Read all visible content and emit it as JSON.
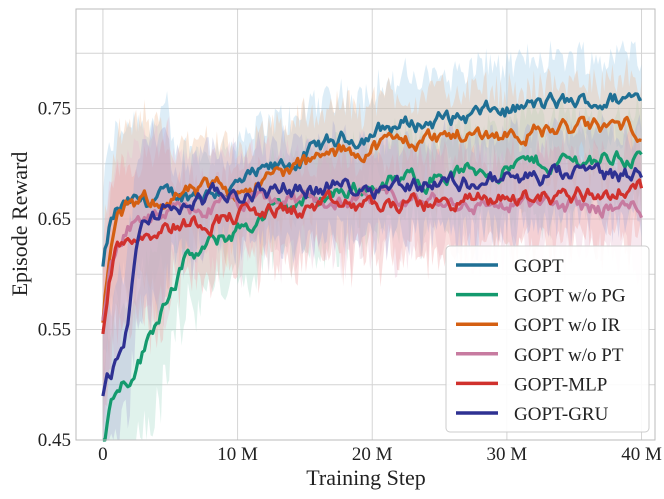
{
  "chart_data": {
    "type": "line",
    "title": "",
    "xlabel": "Training Step",
    "ylabel": "Episode Reward",
    "xlim": [
      -2,
      41
    ],
    "ylim": [
      0.45,
      0.84
    ],
    "x_ticks": [
      0,
      10,
      20,
      30,
      40
    ],
    "x_tick_labels": [
      "0",
      "10 M",
      "20 M",
      "30 M",
      "40 M"
    ],
    "y_ticks": [
      0.45,
      0.55,
      0.65,
      0.75
    ],
    "y_tick_labels": [
      "0.45",
      "0.55",
      "0.65",
      "0.75"
    ],
    "grid": true,
    "legend_position": "bottom-right",
    "x_unit": "million steps",
    "series": [
      {
        "name": "GOPT",
        "color": "#1f6f94",
        "band_color": "#9ecae8",
        "points": [
          [
            0,
            0.605
          ],
          [
            0.5,
            0.64
          ],
          [
            1,
            0.655
          ],
          [
            2,
            0.662
          ],
          [
            4,
            0.668
          ],
          [
            6,
            0.672
          ],
          [
            8,
            0.675
          ],
          [
            10,
            0.68
          ],
          [
            12,
            0.69
          ],
          [
            14,
            0.7
          ],
          [
            16,
            0.713
          ],
          [
            18,
            0.722
          ],
          [
            20,
            0.728
          ],
          [
            22,
            0.735
          ],
          [
            24,
            0.738
          ],
          [
            26,
            0.741
          ],
          [
            28,
            0.745
          ],
          [
            30,
            0.748
          ],
          [
            32,
            0.752
          ],
          [
            34,
            0.754
          ],
          [
            36,
            0.756
          ],
          [
            38,
            0.758
          ],
          [
            40,
            0.761
          ]
        ]
      },
      {
        "name": "GOPT w/o PG",
        "color": "#149a6e",
        "band_color": "#a6dbc8",
        "points": [
          [
            0,
            0.45
          ],
          [
            0.5,
            0.48
          ],
          [
            1,
            0.5
          ],
          [
            2,
            0.51
          ],
          [
            3,
            0.53
          ],
          [
            4,
            0.56
          ],
          [
            5,
            0.59
          ],
          [
            6,
            0.61
          ],
          [
            8,
            0.625
          ],
          [
            10,
            0.64
          ],
          [
            12,
            0.652
          ],
          [
            14,
            0.662
          ],
          [
            16,
            0.67
          ],
          [
            18,
            0.676
          ],
          [
            20,
            0.68
          ],
          [
            22,
            0.684
          ],
          [
            24,
            0.688
          ],
          [
            26,
            0.691
          ],
          [
            28,
            0.694
          ],
          [
            30,
            0.697
          ],
          [
            32,
            0.7
          ],
          [
            34,
            0.702
          ],
          [
            36,
            0.704
          ],
          [
            38,
            0.706
          ],
          [
            40,
            0.707
          ]
        ]
      },
      {
        "name": "GOPT w/o IR",
        "color": "#d45f12",
        "band_color": "#eebb94",
        "points": [
          [
            0,
            0.555
          ],
          [
            0.5,
            0.62
          ],
          [
            1,
            0.645
          ],
          [
            2,
            0.66
          ],
          [
            4,
            0.668
          ],
          [
            6,
            0.672
          ],
          [
            8,
            0.675
          ],
          [
            10,
            0.679
          ],
          [
            12,
            0.686
          ],
          [
            14,
            0.695
          ],
          [
            16,
            0.703
          ],
          [
            18,
            0.71
          ],
          [
            20,
            0.716
          ],
          [
            22,
            0.72
          ],
          [
            24,
            0.723
          ],
          [
            26,
            0.725
          ],
          [
            28,
            0.727
          ],
          [
            30,
            0.728
          ],
          [
            32,
            0.73
          ],
          [
            34,
            0.731
          ],
          [
            36,
            0.732
          ],
          [
            38,
            0.733
          ],
          [
            40,
            0.733
          ]
        ]
      },
      {
        "name": "GOPT w/o PT",
        "color": "#c77ba0",
        "band_color": "#e8bcd2",
        "points": [
          [
            0,
            0.56
          ],
          [
            0.5,
            0.6
          ],
          [
            1,
            0.625
          ],
          [
            2,
            0.64
          ],
          [
            4,
            0.65
          ],
          [
            6,
            0.655
          ],
          [
            8,
            0.66
          ],
          [
            10,
            0.663
          ],
          [
            12,
            0.665
          ],
          [
            14,
            0.666
          ],
          [
            16,
            0.667
          ],
          [
            18,
            0.666
          ],
          [
            20,
            0.667
          ],
          [
            22,
            0.666
          ],
          [
            24,
            0.665
          ],
          [
            26,
            0.664
          ],
          [
            28,
            0.664
          ],
          [
            30,
            0.663
          ],
          [
            32,
            0.662
          ],
          [
            34,
            0.662
          ],
          [
            36,
            0.661
          ],
          [
            38,
            0.66
          ],
          [
            40,
            0.66
          ]
        ]
      },
      {
        "name": "GOPT-MLP",
        "color": "#d0312d",
        "band_color": "#eea4a2",
        "points": [
          [
            0,
            0.545
          ],
          [
            0.5,
            0.6
          ],
          [
            1,
            0.625
          ],
          [
            2,
            0.635
          ],
          [
            4,
            0.642
          ],
          [
            6,
            0.646
          ],
          [
            8,
            0.65
          ],
          [
            10,
            0.654
          ],
          [
            12,
            0.656
          ],
          [
            14,
            0.658
          ],
          [
            16,
            0.66
          ],
          [
            18,
            0.661
          ],
          [
            20,
            0.662
          ],
          [
            22,
            0.663
          ],
          [
            24,
            0.664
          ],
          [
            26,
            0.665
          ],
          [
            28,
            0.667
          ],
          [
            30,
            0.668
          ],
          [
            32,
            0.67
          ],
          [
            34,
            0.671
          ],
          [
            36,
            0.673
          ],
          [
            38,
            0.675
          ],
          [
            40,
            0.677
          ]
        ]
      },
      {
        "name": "GOPT-GRU",
        "color": "#2e3192",
        "band_color": "#a7a8d4",
        "points": [
          [
            0,
            0.495
          ],
          [
            0.5,
            0.51
          ],
          [
            1,
            0.52
          ],
          [
            1.5,
            0.53
          ],
          [
            2,
            0.57
          ],
          [
            2.5,
            0.62
          ],
          [
            3,
            0.645
          ],
          [
            4,
            0.655
          ],
          [
            6,
            0.662
          ],
          [
            8,
            0.668
          ],
          [
            10,
            0.672
          ],
          [
            12,
            0.676
          ],
          [
            14,
            0.678
          ],
          [
            16,
            0.679
          ],
          [
            18,
            0.68
          ],
          [
            20,
            0.681
          ],
          [
            22,
            0.682
          ],
          [
            24,
            0.683
          ],
          [
            26,
            0.684
          ],
          [
            28,
            0.685
          ],
          [
            30,
            0.686
          ],
          [
            32,
            0.687
          ],
          [
            34,
            0.688
          ],
          [
            36,
            0.689
          ],
          [
            38,
            0.69
          ],
          [
            40,
            0.691
          ]
        ]
      }
    ]
  }
}
